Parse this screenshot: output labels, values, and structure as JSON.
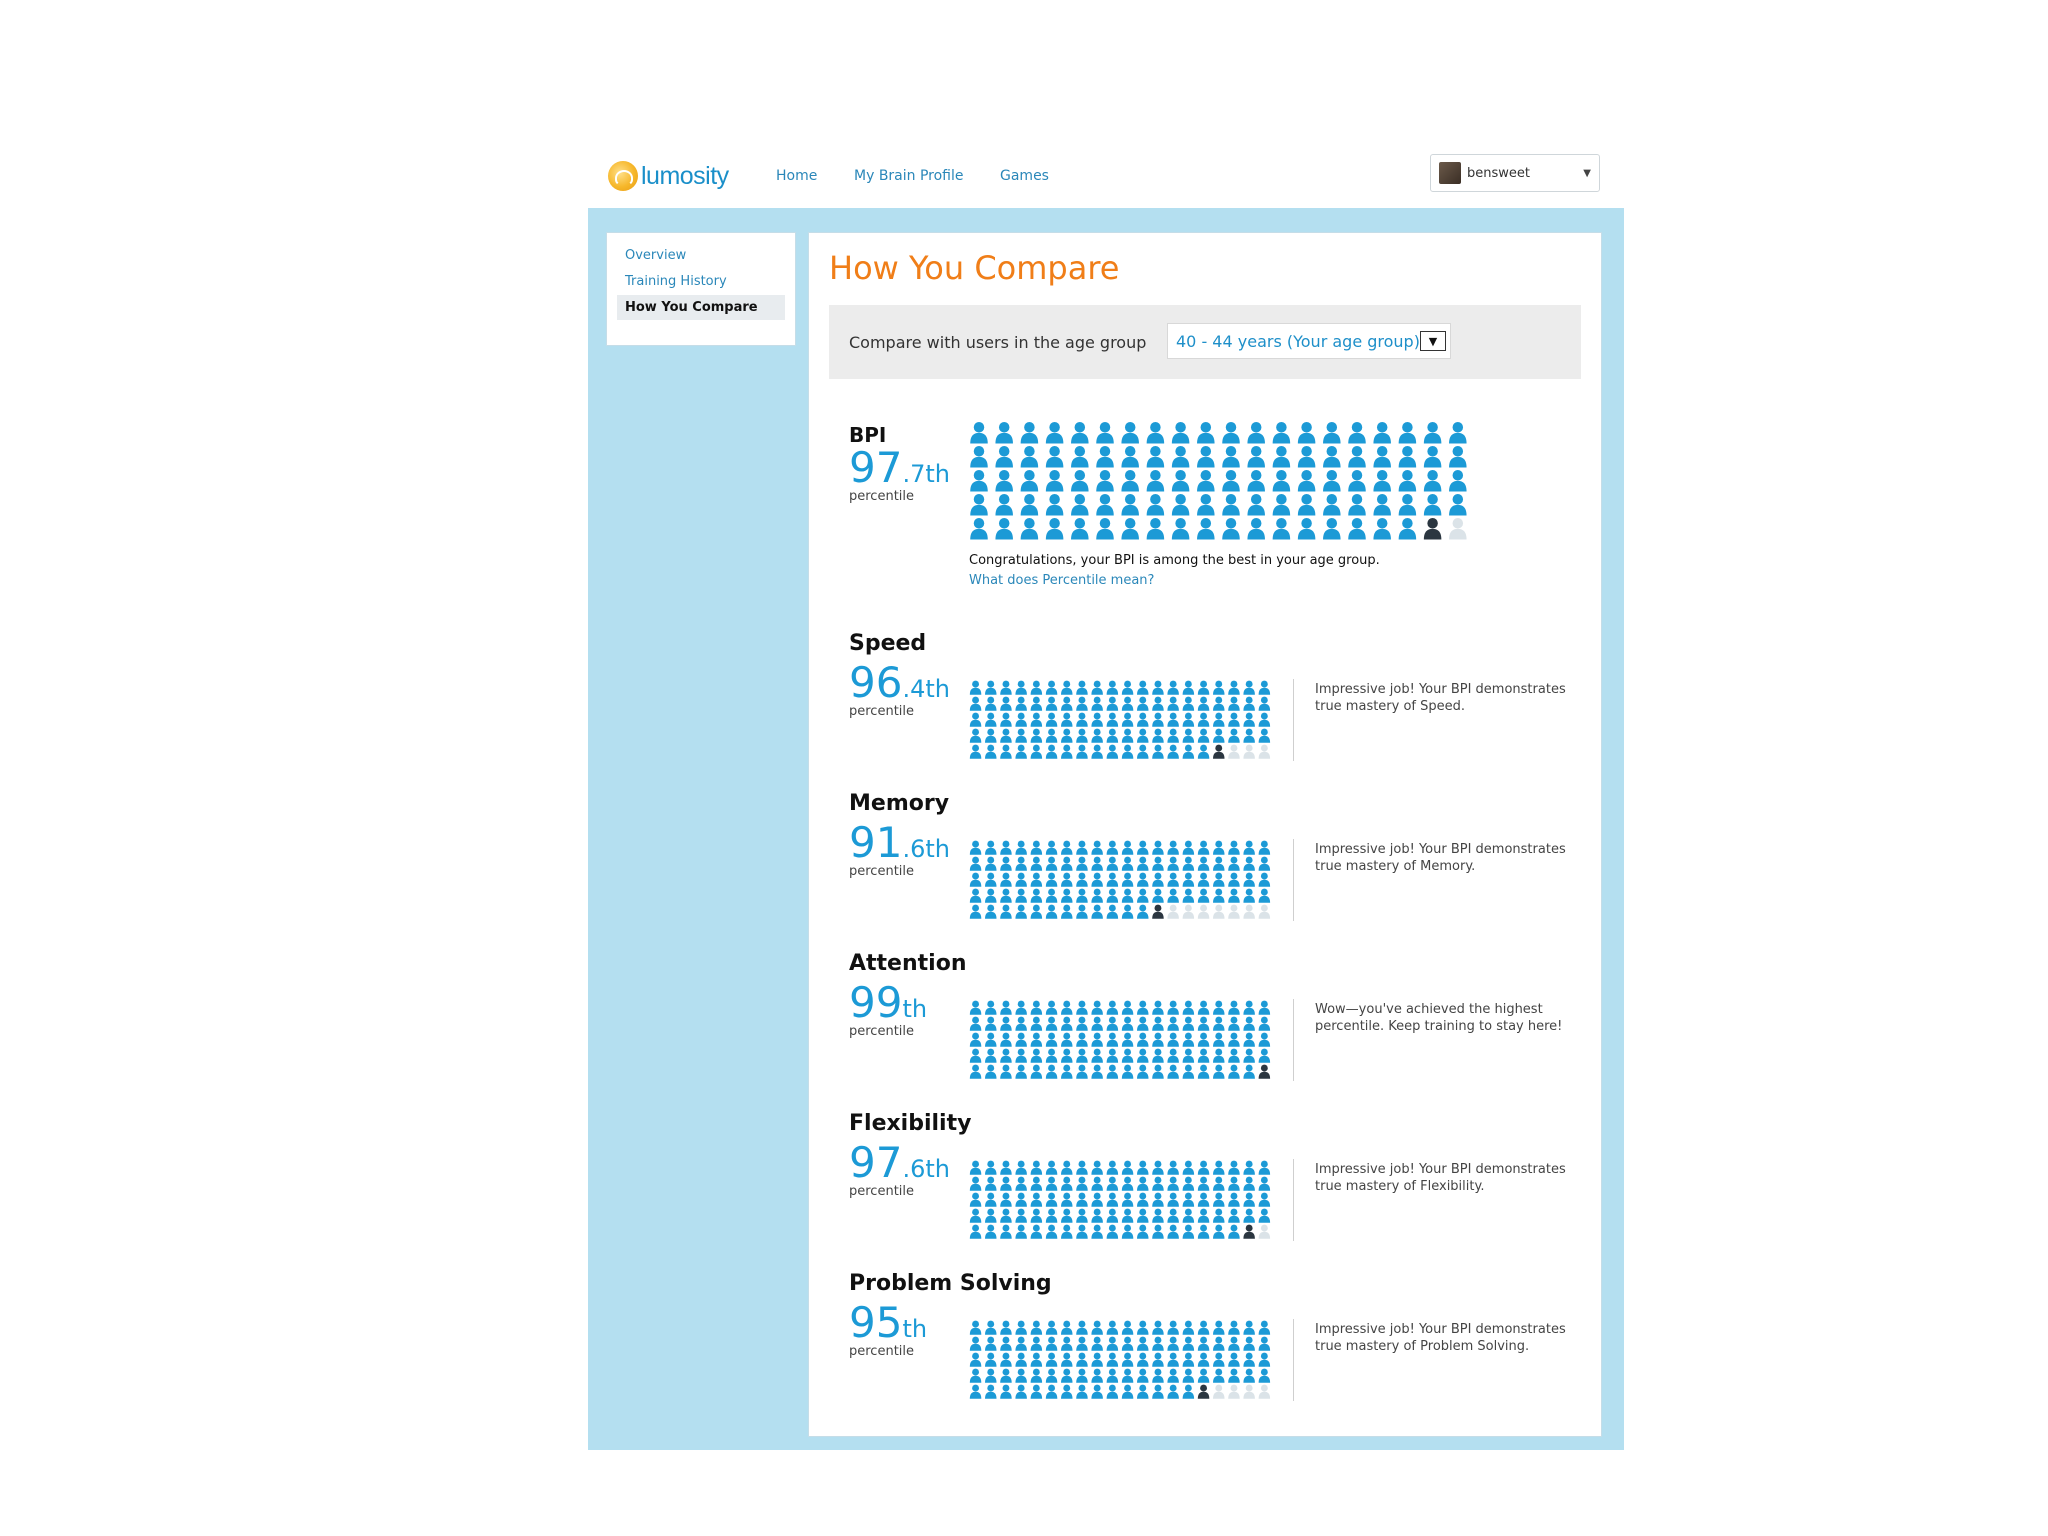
{
  "header": {
    "logo_text": "lumosity",
    "nav": [
      {
        "label": "Home"
      },
      {
        "label": "My Brain Profile"
      },
      {
        "label": "Games"
      }
    ],
    "user": {
      "name": "bensweet"
    }
  },
  "sidebar": {
    "items": [
      {
        "label": "Overview",
        "active": false
      },
      {
        "label": "Training History",
        "active": false
      },
      {
        "label": "How You Compare",
        "active": true
      }
    ]
  },
  "main": {
    "title": "How You Compare",
    "compare": {
      "label": "Compare with users in the age group",
      "selected": "40 - 44 years (Your age group)"
    },
    "bpi": {
      "name": "BPI",
      "score_int": "97",
      "score_suffix": ".7th",
      "percentile_label": "percentile",
      "percentile": 97.7,
      "message": "Congratulations, your BPI is among the best in your age group.",
      "link": "What does Percentile mean?"
    },
    "metrics": [
      {
        "name": "Speed",
        "score_int": "96",
        "score_suffix": ".4th",
        "percentile_label": "percentile",
        "percentile": 96.4,
        "message": "Impressive job! Your BPI demonstrates true mastery of Speed."
      },
      {
        "name": "Memory",
        "score_int": "91",
        "score_suffix": ".6th",
        "percentile_label": "percentile",
        "percentile": 91.6,
        "message": "Impressive job! Your BPI demonstrates true mastery of Memory."
      },
      {
        "name": "Attention",
        "score_int": "99",
        "score_suffix": "th",
        "percentile_label": "percentile",
        "percentile": 99,
        "message": "Wow—you've achieved the highest percentile. Keep training to stay here!"
      },
      {
        "name": "Flexibility",
        "score_int": "97",
        "score_suffix": ".6th",
        "percentile_label": "percentile",
        "percentile": 97.6,
        "message": "Impressive job! Your BPI demonstrates true mastery of Flexibility."
      },
      {
        "name": "Problem Solving",
        "score_int": "95",
        "score_suffix": "th",
        "percentile_label": "percentile",
        "percentile": 95,
        "message": "Impressive job! Your BPI demonstrates true mastery of Problem Solving."
      }
    ]
  },
  "colors": {
    "accent": "#f07e18",
    "blue": "#1c9ad6",
    "frame": "#b4dff0",
    "person_filled": "#1c9ad6",
    "person_empty": "#dbe3e8",
    "person_you": "#2b3640"
  }
}
